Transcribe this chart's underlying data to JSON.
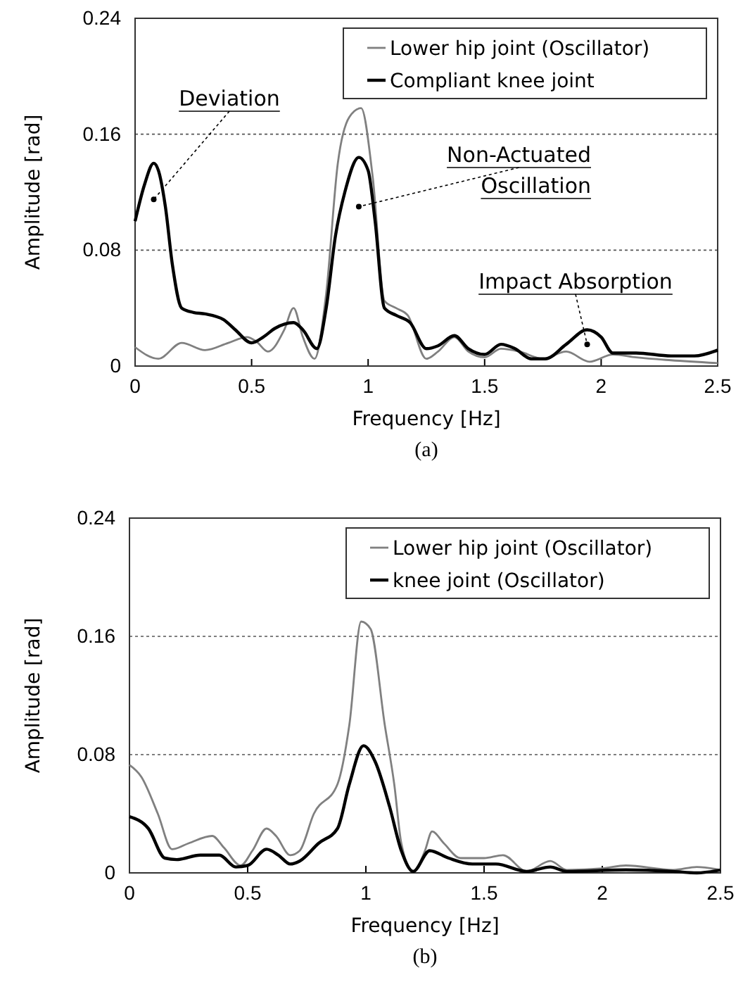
{
  "chart_data": [
    {
      "type": "line",
      "xlabel": "Frequency [Hz]",
      "ylabel": "Amplitude [rad]",
      "xlim": [
        0,
        2.5
      ],
      "ylim": [
        0,
        0.24
      ],
      "xticks": [
        0,
        0.5,
        1,
        1.5,
        2,
        2.5
      ],
      "yticks": [
        0,
        0.08,
        0.16,
        0.24
      ],
      "grid": "y",
      "legend": "top right",
      "line_style": "solid",
      "marker": "none",
      "annotations": [
        {
          "text": "Deviation",
          "x": 0.08,
          "y": 0.115
        },
        {
          "text": "Non-Actuated\nOscillation",
          "x": 0.96,
          "y": 0.11
        },
        {
          "text": "Impact Absorption",
          "x": 1.94,
          "y": 0.015
        },
        "(a)"
      ],
      "series": [
        {
          "name": "Lower hip joint (Oscillator)",
          "color": "#808080",
          "x": [
            0,
            0.1,
            0.2,
            0.3,
            0.4,
            0.48,
            0.52,
            0.57,
            0.64,
            0.68,
            0.72,
            0.77,
            0.82,
            0.87,
            0.92,
            0.97,
            1.02,
            1.07,
            1.12,
            1.17,
            1.25,
            1.3,
            1.37,
            1.43,
            1.5,
            1.57,
            1.65,
            1.75,
            1.85,
            1.95,
            2.05,
            2.15,
            2.3,
            2.5
          ],
          "values": [
            0.013,
            0.005,
            0.016,
            0.011,
            0.016,
            0.02,
            0.017,
            0.01,
            0.025,
            0.04,
            0.02,
            0.005,
            0.05,
            0.14,
            0.172,
            0.178,
            0.13,
            0.045,
            0.04,
            0.035,
            0.005,
            0.01,
            0.02,
            0.01,
            0.006,
            0.012,
            0.01,
            0.005,
            0.01,
            0.003,
            0.008,
            0.006,
            0.004,
            0.002
          ]
        },
        {
          "name": "Compliant knee joint",
          "color": "#000000",
          "x": [
            0,
            0.04,
            0.08,
            0.1,
            0.13,
            0.16,
            0.2,
            0.25,
            0.3,
            0.38,
            0.43,
            0.5,
            0.55,
            0.6,
            0.68,
            0.72,
            0.78,
            0.82,
            0.86,
            0.9,
            0.96,
            1.0,
            1.03,
            1.07,
            1.12,
            1.18,
            1.25,
            1.3,
            1.37,
            1.43,
            1.5,
            1.57,
            1.63,
            1.7,
            1.76,
            1.85,
            1.94,
            2.0,
            2.05,
            2.15,
            2.3,
            2.4,
            2.5
          ],
          "values": [
            0.1,
            0.125,
            0.14,
            0.135,
            0.11,
            0.07,
            0.04,
            0.037,
            0.036,
            0.032,
            0.025,
            0.016,
            0.02,
            0.026,
            0.03,
            0.025,
            0.012,
            0.04,
            0.09,
            0.12,
            0.144,
            0.135,
            0.1,
            0.04,
            0.035,
            0.03,
            0.012,
            0.014,
            0.021,
            0.012,
            0.008,
            0.015,
            0.012,
            0.005,
            0.005,
            0.015,
            0.025,
            0.02,
            0.009,
            0.009,
            0.007,
            0.007,
            0.011
          ]
        }
      ]
    },
    {
      "type": "line",
      "xlabel": "Frequency [Hz]",
      "ylabel": "Amplitude [rad]",
      "xlim": [
        0,
        2.5
      ],
      "ylim": [
        0,
        0.24
      ],
      "xticks": [
        0,
        0.5,
        1,
        1.5,
        2,
        2.5
      ],
      "yticks": [
        0,
        0.08,
        0.16,
        0.24
      ],
      "grid": "y",
      "legend": "top right",
      "line_style": "solid",
      "marker": "none",
      "annotations": [
        "(b)"
      ],
      "series": [
        {
          "name": "Lower hip joint (Oscillator)",
          "color": "#808080",
          "x": [
            0,
            0.05,
            0.12,
            0.18,
            0.25,
            0.35,
            0.4,
            0.47,
            0.52,
            0.58,
            0.62,
            0.68,
            0.72,
            0.78,
            0.88,
            0.93,
            0.98,
            1.02,
            1.08,
            1.12,
            1.15,
            1.2,
            1.25,
            1.28,
            1.33,
            1.4,
            1.5,
            1.58,
            1.68,
            1.78,
            1.85,
            2.0,
            2.1,
            2.3,
            2.4,
            2.5
          ],
          "values": [
            0.073,
            0.065,
            0.04,
            0.016,
            0.02,
            0.025,
            0.017,
            0.005,
            0.015,
            0.03,
            0.025,
            0.012,
            0.015,
            0.04,
            0.06,
            0.1,
            0.17,
            0.165,
            0.1,
            0.06,
            0.02,
            0.001,
            0.015,
            0.028,
            0.02,
            0.01,
            0.01,
            0.012,
            0.001,
            0.008,
            0.002,
            0.003,
            0.005,
            0.002,
            0.004,
            0.002
          ]
        },
        {
          "name": "knee joint (Oscillator)",
          "color": "#000000",
          "x": [
            0,
            0.08,
            0.15,
            0.2,
            0.3,
            0.38,
            0.45,
            0.5,
            0.58,
            0.63,
            0.68,
            0.72,
            0.8,
            0.88,
            0.93,
            0.99,
            1.04,
            1.1,
            1.15,
            1.2,
            1.27,
            1.35,
            1.45,
            1.55,
            1.68,
            1.78,
            1.85,
            2.1,
            2.3,
            2.4,
            2.5
          ],
          "values": [
            0.038,
            0.03,
            0.01,
            0.009,
            0.012,
            0.012,
            0.004,
            0.005,
            0.016,
            0.012,
            0.006,
            0.008,
            0.02,
            0.03,
            0.06,
            0.086,
            0.075,
            0.045,
            0.015,
            0.001,
            0.015,
            0.01,
            0.006,
            0.006,
            0.001,
            0.004,
            0.001,
            0.002,
            0.001,
            0,
            0.002
          ]
        }
      ]
    }
  ]
}
